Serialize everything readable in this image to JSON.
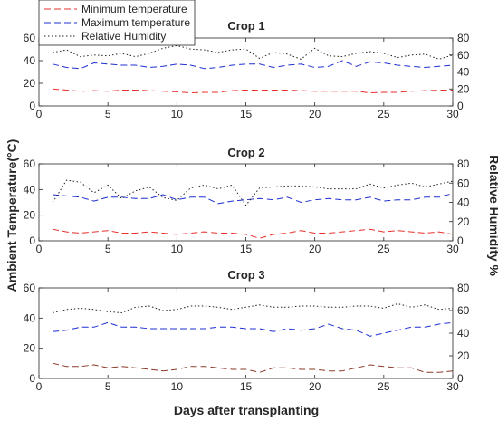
{
  "figure": {
    "ylabel_left": "Ambient Temperature(°C)",
    "ylabel_right": "Relative Humidity %",
    "xlabel": "Days after transplanting"
  },
  "legend": {
    "placement": "top-left",
    "entries": [
      {
        "name": "Minimum temperature",
        "color": "#e8302c",
        "dash": "dashed"
      },
      {
        "name": "Maximum temperature",
        "color": "#1f2fd0",
        "dash": "dashed"
      },
      {
        "name": "Relative Humidity",
        "color": "#222222",
        "dash": "dotted"
      }
    ]
  },
  "chart_data": [
    {
      "type": "line",
      "title": "Crop 1",
      "x_ticks": [
        "0",
        "5",
        "10",
        "15",
        "20",
        "25",
        "30"
      ],
      "y_left_ticks": [
        "0",
        "20",
        "40",
        "60"
      ],
      "y_right_ticks": [
        "0",
        "20",
        "40",
        "60",
        "80"
      ],
      "xlim": [
        0,
        30
      ],
      "ylim_left": [
        0,
        60
      ],
      "ylim_right": [
        0,
        80
      ],
      "grid": false,
      "x": [
        1,
        2,
        3,
        4,
        5,
        6,
        7,
        8,
        9,
        10,
        11,
        12,
        13,
        14,
        15,
        16,
        17,
        18,
        19,
        20,
        21,
        22,
        23,
        24,
        25,
        26,
        27,
        28,
        29,
        30
      ],
      "series": [
        {
          "name": "Minimum temperature",
          "axis": "left",
          "color": "#e8302c",
          "values": [
            15,
            14,
            13,
            13.5,
            13,
            14,
            14,
            13.5,
            13,
            12.5,
            11.5,
            12,
            12,
            13.5,
            14,
            14,
            14,
            14,
            13.5,
            13,
            13,
            13,
            13,
            11.5,
            12,
            12,
            13,
            13.5,
            14,
            14
          ]
        },
        {
          "name": "Maximum temperature",
          "axis": "left",
          "color": "#1f2fd0",
          "values": [
            37,
            34,
            33,
            38,
            37,
            36,
            36,
            34,
            35,
            37,
            36,
            33,
            34,
            36,
            37,
            37,
            34,
            36,
            37,
            34,
            35,
            40,
            35,
            39,
            38,
            36,
            35,
            34,
            35,
            36
          ]
        },
        {
          "name": "Relative Humidity",
          "axis": "right",
          "color": "#222222",
          "values": [
            63,
            66,
            58,
            60,
            59,
            62,
            58,
            62,
            68,
            71,
            67,
            66,
            63,
            66,
            67,
            56,
            63,
            61,
            55,
            68,
            59,
            58,
            62,
            64,
            62,
            57,
            60,
            61,
            55,
            60
          ]
        }
      ]
    },
    {
      "type": "line",
      "title": "Crop 2",
      "x_ticks": [
        "0",
        "5",
        "10",
        "15",
        "20",
        "25",
        "30"
      ],
      "y_left_ticks": [
        "0",
        "20",
        "40",
        "60"
      ],
      "y_right_ticks": [
        "0",
        "20",
        "40",
        "60",
        "80"
      ],
      "xlim": [
        0,
        30
      ],
      "ylim_left": [
        0,
        60
      ],
      "ylim_right": [
        0,
        80
      ],
      "grid": false,
      "x": [
        1,
        2,
        3,
        4,
        5,
        6,
        7,
        8,
        9,
        10,
        11,
        12,
        13,
        14,
        15,
        16,
        17,
        18,
        19,
        20,
        21,
        22,
        23,
        24,
        25,
        26,
        27,
        28,
        29,
        30
      ],
      "series": [
        {
          "name": "Minimum temperature",
          "axis": "left",
          "color": "#e8302c",
          "values": [
            9,
            7,
            6,
            7,
            8,
            6,
            6,
            7,
            6,
            5,
            6,
            7,
            6,
            6,
            5,
            2,
            5,
            6,
            8,
            6,
            6,
            7,
            8,
            9,
            7,
            8,
            7,
            6,
            7,
            5
          ]
        },
        {
          "name": "Maximum temperature",
          "axis": "left",
          "color": "#1f2fd0",
          "values": [
            36,
            35,
            34,
            31,
            34,
            34,
            33,
            33,
            36,
            32,
            34,
            34,
            29,
            31,
            32,
            33,
            32,
            34,
            30,
            32,
            33,
            32,
            32,
            34,
            31,
            32,
            32,
            34,
            34,
            37
          ]
        },
        {
          "name": "Relative Humidity",
          "axis": "right",
          "color": "#222222",
          "values": [
            40,
            63,
            61,
            50,
            58,
            44,
            52,
            56,
            45,
            42,
            55,
            58,
            54,
            58,
            37,
            55,
            56,
            57,
            57,
            56,
            54,
            54,
            54,
            59,
            55,
            58,
            60,
            56,
            59,
            62
          ]
        }
      ]
    },
    {
      "type": "line",
      "title": "Crop 3",
      "x_ticks": [
        "0",
        "5",
        "10",
        "15",
        "20",
        "25",
        "30"
      ],
      "y_left_ticks": [
        "0",
        "20",
        "40",
        "60"
      ],
      "y_right_ticks": [
        "0",
        "20",
        "40",
        "60",
        "80"
      ],
      "xlim": [
        0,
        30
      ],
      "ylim_left": [
        0,
        60
      ],
      "ylim_right": [
        0,
        80
      ],
      "grid": false,
      "x": [
        1,
        2,
        3,
        4,
        5,
        6,
        7,
        8,
        9,
        10,
        11,
        12,
        13,
        14,
        15,
        16,
        17,
        18,
        19,
        20,
        21,
        22,
        23,
        24,
        25,
        26,
        27,
        28,
        29,
        30
      ],
      "series": [
        {
          "name": "Minimum temperature",
          "axis": "left",
          "color": "#8b3a2a",
          "values": [
            10,
            8,
            8,
            9,
            7,
            8,
            7,
            6,
            5,
            6,
            8,
            8,
            7,
            6,
            6,
            4,
            7,
            7,
            6,
            6,
            5,
            5,
            7,
            9,
            8,
            7,
            7,
            4,
            4,
            5
          ]
        },
        {
          "name": "Maximum temperature",
          "axis": "left",
          "color": "#1f2fd0",
          "values": [
            31,
            32,
            34,
            34,
            37,
            34,
            34,
            33,
            33,
            33,
            33,
            33,
            34,
            34,
            33,
            33,
            31,
            33,
            32,
            33,
            36,
            33,
            32,
            28,
            30,
            32,
            34,
            34,
            36,
            37
          ]
        },
        {
          "name": "Relative Humidity",
          "axis": "right",
          "color": "#222222",
          "values": [
            58,
            61,
            62,
            61,
            59,
            58,
            63,
            64,
            60,
            61,
            64,
            64,
            63,
            61,
            63,
            65,
            63,
            63,
            64,
            64,
            63,
            63,
            64,
            64,
            62,
            66,
            63,
            65,
            61,
            62
          ]
        }
      ]
    }
  ]
}
